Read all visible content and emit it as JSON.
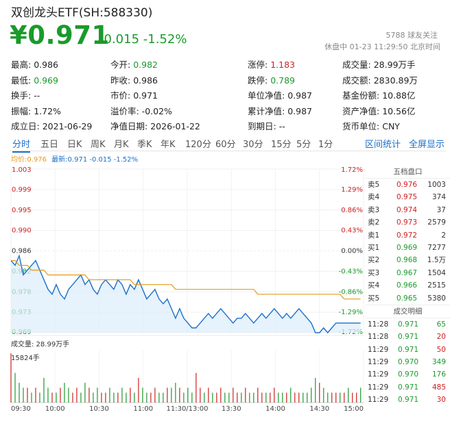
{
  "header": {
    "title": "双创龙头ETF(SH:588330)",
    "price": "¥0.971",
    "change": "-0.015 -1.52%",
    "followers": "5788 球友关注",
    "status": "休盘中 01-23 11:29:50 北京时间"
  },
  "stats": [
    [
      {
        "label": "最高:",
        "value": "0.986",
        "color": "#222"
      },
      {
        "label": "今开:",
        "value": "0.982",
        "color": "#1a9a2a"
      },
      {
        "label": "涨停:",
        "value": "1.183",
        "color": "#d02020"
      },
      {
        "label": "成交量:",
        "value": "28.99万手",
        "color": "#222"
      }
    ],
    [
      {
        "label": "最低:",
        "value": "0.969",
        "color": "#1a9a2a"
      },
      {
        "label": "昨收:",
        "value": "0.986",
        "color": "#222"
      },
      {
        "label": "跌停:",
        "value": "0.789",
        "color": "#1a9a2a"
      },
      {
        "label": "成交额:",
        "value": "2830.89万",
        "color": "#222"
      }
    ],
    [
      {
        "label": "换手:",
        "value": "--",
        "color": "#222"
      },
      {
        "label": "市价:",
        "value": "0.971",
        "color": "#222"
      },
      {
        "label": "单位净值:",
        "value": "0.987",
        "color": "#222"
      },
      {
        "label": "基金份额:",
        "value": "10.88亿",
        "color": "#222"
      }
    ],
    [
      {
        "label": "振幅:",
        "value": "1.72%",
        "color": "#222"
      },
      {
        "label": "溢价率:",
        "value": "-0.02%",
        "color": "#222"
      },
      {
        "label": "累计净值:",
        "value": "0.987",
        "color": "#222"
      },
      {
        "label": "资产净值:",
        "value": "10.56亿",
        "color": "#222"
      }
    ],
    [
      {
        "label": "成立日:",
        "value": "2021-06-29",
        "color": "#222"
      },
      {
        "label": "净值日期:",
        "value": "2026-01-22",
        "color": "#222"
      },
      {
        "label": "到期日:",
        "value": "--",
        "color": "#222"
      },
      {
        "label": "货币单位:",
        "value": "CNY",
        "color": "#222"
      }
    ]
  ],
  "tabs": [
    "分时",
    "五日",
    "日K",
    "周K",
    "月K",
    "季K",
    "年K",
    "120分",
    "60分",
    "30分",
    "15分",
    "5分",
    "1分"
  ],
  "tab_links": [
    "区间统计",
    "全屏显示"
  ],
  "legend": {
    "avg": "均价:0.976",
    "latest": "最新:0.971 -0.015 -1.52%"
  },
  "order_book": {
    "title": "五档盘口",
    "rows": [
      {
        "label": "卖5",
        "price": "0.976",
        "vol": "1003",
        "color": "#d02020"
      },
      {
        "label": "卖4",
        "price": "0.975",
        "vol": "374",
        "color": "#d02020"
      },
      {
        "label": "卖3",
        "price": "0.974",
        "vol": "37",
        "color": "#d02020"
      },
      {
        "label": "卖2",
        "price": "0.973",
        "vol": "2579",
        "color": "#d02020"
      },
      {
        "label": "卖1",
        "price": "0.972",
        "vol": "2",
        "color": "#d02020"
      },
      {
        "label": "买1",
        "price": "0.969",
        "vol": "7277",
        "color": "#1a9a2a"
      },
      {
        "label": "买2",
        "price": "0.968",
        "vol": "1.5万",
        "color": "#1a9a2a"
      },
      {
        "label": "买3",
        "price": "0.967",
        "vol": "1504",
        "color": "#1a9a2a"
      },
      {
        "label": "买4",
        "price": "0.966",
        "vol": "2515",
        "color": "#1a9a2a"
      },
      {
        "label": "买5",
        "price": "0.965",
        "vol": "5380",
        "color": "#1a9a2a"
      }
    ],
    "trades_title": "成交明细",
    "trades": [
      {
        "time": "11:28",
        "price": "0.971",
        "vol": "65",
        "color": "#1a9a2a"
      },
      {
        "time": "11:28",
        "price": "0.971",
        "vol": "20",
        "color": "#d02020"
      },
      {
        "time": "11:29",
        "price": "0.971",
        "vol": "50",
        "color": "#d02020"
      },
      {
        "time": "11:29",
        "price": "0.970",
        "vol": "349",
        "color": "#1a9a2a"
      },
      {
        "time": "11:29",
        "price": "0.970",
        "vol": "176",
        "color": "#1a9a2a"
      },
      {
        "time": "11:29",
        "price": "0.971",
        "vol": "485",
        "color": "#d02020"
      },
      {
        "time": "11:29",
        "price": "0.971",
        "vol": "30",
        "color": "#d02020"
      }
    ]
  },
  "volume": {
    "title": "成交量: 28.99万手",
    "max_label": "15824手"
  },
  "chart_data": {
    "type": "line",
    "prev_close": 0.986,
    "y_ticks": [
      "1.003",
      "0.999",
      "0.995",
      "0.990",
      "0.986",
      "0.982",
      "0.978",
      "0.973",
      "0.969"
    ],
    "pct_ticks": [
      "1.72%",
      "1.29%",
      "0.86%",
      "0.43%",
      "0.00%",
      "-0.43%",
      "-0.86%",
      "-1.29%",
      "-1.72%"
    ],
    "x_ticks": [
      "09:30",
      "10:00",
      "10:30",
      "11:00",
      "11:30/13:00",
      "13:30",
      "14:00",
      "14:30",
      "15:00"
    ],
    "ylim": [
      0.969,
      1.003
    ],
    "series": [
      {
        "name": "最新",
        "values": [
          0.984,
          0.983,
          0.985,
          0.981,
          0.982,
          0.983,
          0.984,
          0.982,
          0.98,
          0.978,
          0.977,
          0.979,
          0.977,
          0.976,
          0.978,
          0.979,
          0.98,
          0.981,
          0.979,
          0.98,
          0.978,
          0.977,
          0.979,
          0.98,
          0.979,
          0.978,
          0.98,
          0.979,
          0.977,
          0.979,
          0.978,
          0.98,
          0.978,
          0.976,
          0.977,
          0.978,
          0.976,
          0.975,
          0.976,
          0.974,
          0.972,
          0.974,
          0.972,
          0.971,
          0.97,
          0.97,
          0.971,
          0.972,
          0.973,
          0.972,
          0.973,
          0.974,
          0.973,
          0.972,
          0.971,
          0.972,
          0.972,
          0.973,
          0.972,
          0.971,
          0.972,
          0.973,
          0.972,
          0.973,
          0.974,
          0.973,
          0.972,
          0.973,
          0.972,
          0.973,
          0.974,
          0.973,
          0.972,
          0.971,
          0.969,
          0.969,
          0.97,
          0.969,
          0.97,
          0.971,
          0.971,
          0.971,
          0.971,
          0.971,
          0.971,
          0.971
        ]
      },
      {
        "name": "均价",
        "values": [
          0.984,
          0.984,
          0.983,
          0.983,
          0.983,
          0.982,
          0.982,
          0.982,
          0.982,
          0.981,
          0.981,
          0.981,
          0.981,
          0.981,
          0.981,
          0.981,
          0.981,
          0.981,
          0.981,
          0.98,
          0.98,
          0.98,
          0.98,
          0.98,
          0.98,
          0.98,
          0.98,
          0.98,
          0.98,
          0.98,
          0.979,
          0.979,
          0.979,
          0.979,
          0.979,
          0.979,
          0.979,
          0.979,
          0.979,
          0.979,
          0.978,
          0.978,
          0.978,
          0.978,
          0.978,
          0.978,
          0.978,
          0.978,
          0.978,
          0.978,
          0.978,
          0.978,
          0.978,
          0.978,
          0.978,
          0.978,
          0.978,
          0.978,
          0.978,
          0.978,
          0.977,
          0.977,
          0.977,
          0.977,
          0.977,
          0.977,
          0.977,
          0.977,
          0.977,
          0.977,
          0.977,
          0.977,
          0.977,
          0.977,
          0.977,
          0.977,
          0.977,
          0.977,
          0.977,
          0.977,
          0.977,
          0.976,
          0.976,
          0.976,
          0.976,
          0.976
        ]
      }
    ],
    "volumes": [
      10,
      6,
      4,
      3,
      3,
      2,
      3,
      2,
      5,
      3,
      2,
      2,
      3,
      4,
      3,
      2,
      3,
      2,
      4,
      3,
      2,
      3,
      2,
      2,
      3,
      2,
      2,
      3,
      2,
      3,
      2,
      5,
      3,
      2,
      2,
      3,
      2,
      2,
      3,
      3,
      4,
      3,
      2,
      3,
      2,
      6,
      3,
      2,
      3,
      2,
      2,
      3,
      2,
      2,
      3,
      2,
      2,
      3,
      2,
      2,
      3,
      2,
      2,
      2,
      3,
      2,
      2,
      2,
      3,
      2,
      2,
      2,
      2,
      3,
      5,
      4,
      3,
      2,
      2,
      2,
      2,
      2,
      3,
      2,
      2,
      3
    ],
    "volume_colors": [
      "r",
      "g",
      "g",
      "g",
      "r",
      "g",
      "r",
      "g",
      "g",
      "g",
      "r",
      "g",
      "r",
      "g",
      "g",
      "r",
      "r",
      "g",
      "g",
      "r",
      "g",
      "g",
      "r",
      "r",
      "g",
      "g",
      "r",
      "g",
      "g",
      "r",
      "g",
      "r",
      "g",
      "g",
      "r",
      "r",
      "g",
      "g",
      "r",
      "g",
      "g",
      "r",
      "g",
      "g",
      "g",
      "r",
      "r",
      "g",
      "r",
      "g",
      "r",
      "r",
      "g",
      "g",
      "r",
      "r",
      "g",
      "r",
      "g",
      "g",
      "r",
      "r",
      "g",
      "r",
      "r",
      "g",
      "g",
      "r",
      "g",
      "r",
      "r",
      "g",
      "g",
      "g",
      "g",
      "r",
      "g",
      "g",
      "r",
      "r",
      "g",
      "r",
      "g",
      "r",
      "r",
      "g"
    ]
  }
}
